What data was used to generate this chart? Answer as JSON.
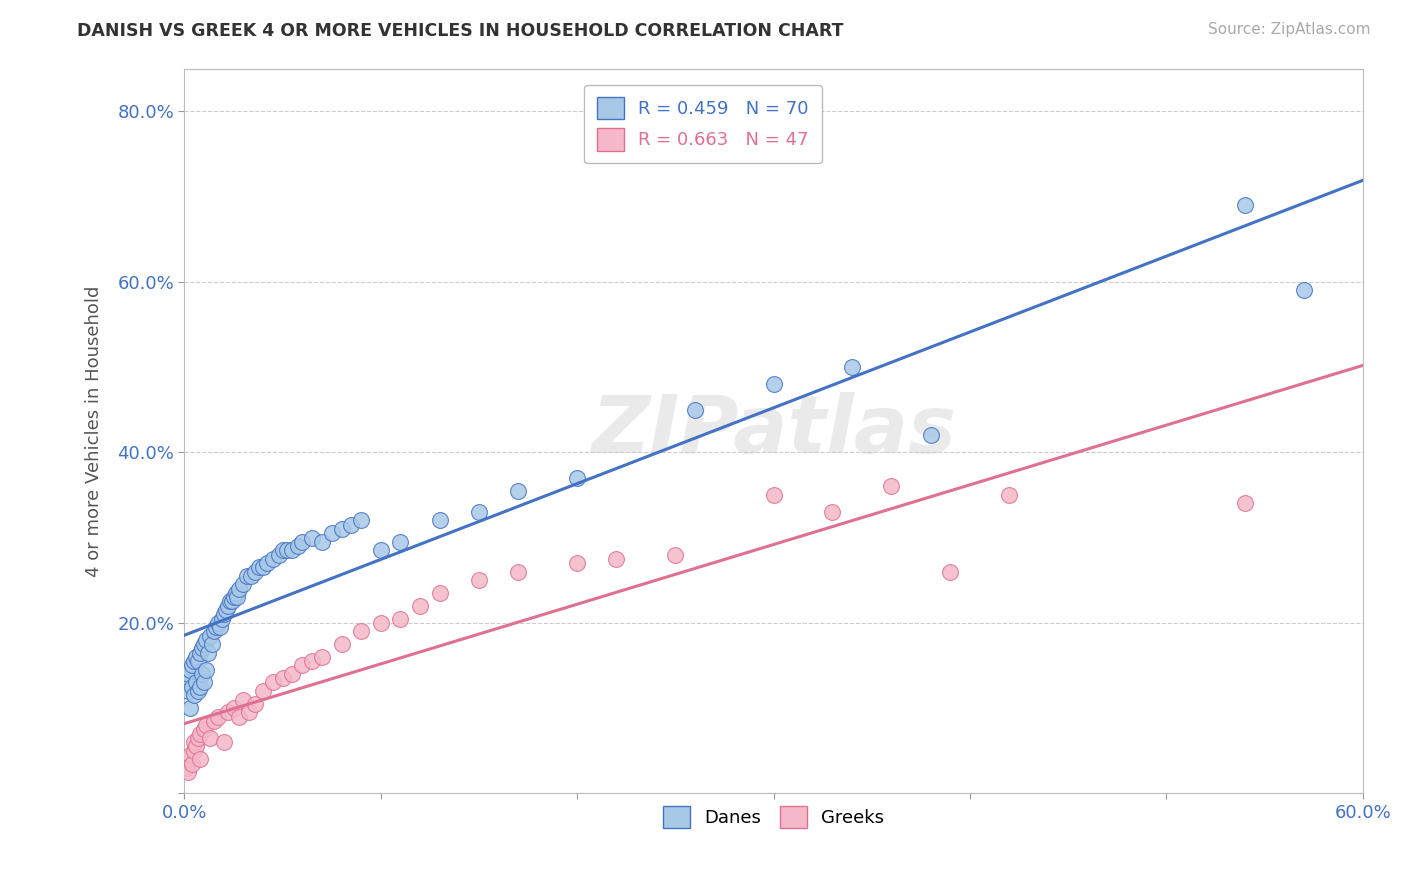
{
  "title": "DANISH VS GREEK 4 OR MORE VEHICLES IN HOUSEHOLD CORRELATION CHART",
  "source": "Source: ZipAtlas.com",
  "ylabel": "4 or more Vehicles in Household",
  "xlabel": "",
  "xlim": [
    0.0,
    0.6
  ],
  "ylim": [
    0.0,
    0.85
  ],
  "xticks": [
    0.0,
    0.1,
    0.2,
    0.3,
    0.4,
    0.5,
    0.6
  ],
  "xticklabels": [
    "0.0%",
    "",
    "",
    "",
    "",
    "",
    "60.0%"
  ],
  "yticks": [
    0.0,
    0.2,
    0.4,
    0.6,
    0.8
  ],
  "yticklabels": [
    "",
    "20.0%",
    "40.0%",
    "60.0%",
    "80.0%"
  ],
  "danish_R": 0.459,
  "danish_N": 70,
  "greek_R": 0.663,
  "greek_N": 47,
  "danish_color": "#a8c8e8",
  "greek_color": "#f4b8c8",
  "danish_line_color": "#4472c4",
  "greek_line_color": "#e07090",
  "watermark_text": "ZIPatlas",
  "danes_x": [
    0.001,
    0.002,
    0.002,
    0.003,
    0.003,
    0.004,
    0.004,
    0.005,
    0.005,
    0.006,
    0.006,
    0.007,
    0.007,
    0.008,
    0.008,
    0.009,
    0.009,
    0.01,
    0.01,
    0.011,
    0.011,
    0.012,
    0.013,
    0.014,
    0.015,
    0.016,
    0.017,
    0.018,
    0.019,
    0.02,
    0.021,
    0.022,
    0.023,
    0.024,
    0.025,
    0.026,
    0.027,
    0.028,
    0.03,
    0.032,
    0.034,
    0.036,
    0.038,
    0.04,
    0.042,
    0.045,
    0.048,
    0.05,
    0.052,
    0.055,
    0.058,
    0.06,
    0.065,
    0.07,
    0.075,
    0.08,
    0.085,
    0.09,
    0.1,
    0.11,
    0.13,
    0.15,
    0.17,
    0.2,
    0.26,
    0.3,
    0.34,
    0.38,
    0.54,
    0.57
  ],
  "danes_y": [
    0.13,
    0.12,
    0.14,
    0.1,
    0.145,
    0.125,
    0.15,
    0.115,
    0.155,
    0.13,
    0.16,
    0.12,
    0.155,
    0.125,
    0.165,
    0.14,
    0.17,
    0.13,
    0.175,
    0.145,
    0.18,
    0.165,
    0.185,
    0.175,
    0.19,
    0.195,
    0.2,
    0.195,
    0.205,
    0.21,
    0.215,
    0.22,
    0.225,
    0.225,
    0.23,
    0.235,
    0.23,
    0.24,
    0.245,
    0.255,
    0.255,
    0.26,
    0.265,
    0.265,
    0.27,
    0.275,
    0.28,
    0.285,
    0.285,
    0.285,
    0.29,
    0.295,
    0.3,
    0.295,
    0.305,
    0.31,
    0.315,
    0.32,
    0.285,
    0.295,
    0.32,
    0.33,
    0.355,
    0.37,
    0.45,
    0.48,
    0.5,
    0.42,
    0.69,
    0.59
  ],
  "greeks_x": [
    0.001,
    0.002,
    0.002,
    0.003,
    0.004,
    0.005,
    0.005,
    0.006,
    0.007,
    0.008,
    0.008,
    0.01,
    0.011,
    0.013,
    0.015,
    0.017,
    0.02,
    0.022,
    0.025,
    0.028,
    0.03,
    0.033,
    0.036,
    0.04,
    0.045,
    0.05,
    0.055,
    0.06,
    0.065,
    0.07,
    0.08,
    0.09,
    0.1,
    0.11,
    0.12,
    0.13,
    0.15,
    0.17,
    0.2,
    0.22,
    0.25,
    0.3,
    0.33,
    0.36,
    0.39,
    0.42,
    0.54
  ],
  "greeks_y": [
    0.03,
    0.025,
    0.04,
    0.045,
    0.035,
    0.05,
    0.06,
    0.055,
    0.065,
    0.07,
    0.04,
    0.075,
    0.08,
    0.065,
    0.085,
    0.09,
    0.06,
    0.095,
    0.1,
    0.09,
    0.11,
    0.095,
    0.105,
    0.12,
    0.13,
    0.135,
    0.14,
    0.15,
    0.155,
    0.16,
    0.175,
    0.19,
    0.2,
    0.205,
    0.22,
    0.235,
    0.25,
    0.26,
    0.27,
    0.275,
    0.28,
    0.35,
    0.33,
    0.36,
    0.26,
    0.35,
    0.34
  ]
}
